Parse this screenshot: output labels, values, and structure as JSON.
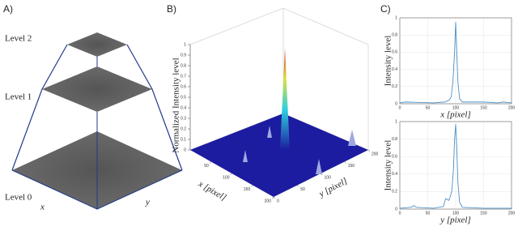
{
  "panel_labels": [
    "A)",
    "B)",
    "C)"
  ],
  "pyramid": {
    "levels": [
      "Level 2",
      "Level 1",
      "Level 0"
    ],
    "x_axis": "x",
    "y_axis": "y"
  },
  "chart_data": [
    {
      "type": "surface",
      "zlabel": "Normalized Intensity level",
      "xlabel": "x [pixel]",
      "ylabel": "y [pixel]",
      "color": "#1c1ca0",
      "zlim": [
        0,
        1
      ],
      "zticks": [
        0,
        0.1,
        0.2,
        0.3,
        0.4,
        0.5,
        0.6,
        0.7,
        0.8,
        0.9,
        1
      ],
      "xlim": [
        0,
        200
      ],
      "xticks": [
        50,
        100,
        150,
        200
      ],
      "ylim": [
        0,
        200
      ],
      "yticks": [
        0,
        50,
        100,
        150,
        200
      ]
    },
    {
      "type": "line",
      "ylabel": "Intensity level",
      "xlabel": "x [pixel]",
      "color": "#4a90c8",
      "x": [
        0,
        10,
        60,
        80,
        88,
        92,
        95,
        98,
        100,
        102,
        104,
        107,
        112,
        150,
        175,
        185,
        200
      ],
      "values": [
        0.01,
        0.02,
        0.01,
        0.02,
        0.04,
        0.08,
        0.25,
        0.6,
        0.95,
        0.6,
        0.25,
        0.06,
        0.02,
        0.02,
        0.01,
        0.02,
        0.01
      ],
      "xlim": [
        0,
        200
      ],
      "xticks": [
        0,
        50,
        100,
        150,
        200
      ],
      "ylim": [
        0,
        1
      ],
      "yticks": [
        0,
        0.2,
        0.4,
        0.6,
        0.8,
        1
      ]
    },
    {
      "type": "line",
      "ylabel": "Intensity level",
      "xlabel": "y [pixel]",
      "color": "#4a90c8",
      "x": [
        0,
        20,
        25,
        30,
        60,
        78,
        82,
        88,
        93,
        96,
        98,
        100,
        102,
        104,
        107,
        112,
        150,
        200
      ],
      "values": [
        0.01,
        0.02,
        0.04,
        0.02,
        0.01,
        0.03,
        0.12,
        0.1,
        0.2,
        0.45,
        0.8,
        0.97,
        0.7,
        0.3,
        0.08,
        0.02,
        0.01,
        0.01
      ],
      "xlim": [
        0,
        200
      ],
      "xticks": [
        0,
        50,
        100,
        150,
        200
      ],
      "ylim": [
        0,
        1
      ],
      "yticks": [
        0,
        0.2,
        0.4,
        0.6,
        0.8,
        1
      ]
    }
  ]
}
